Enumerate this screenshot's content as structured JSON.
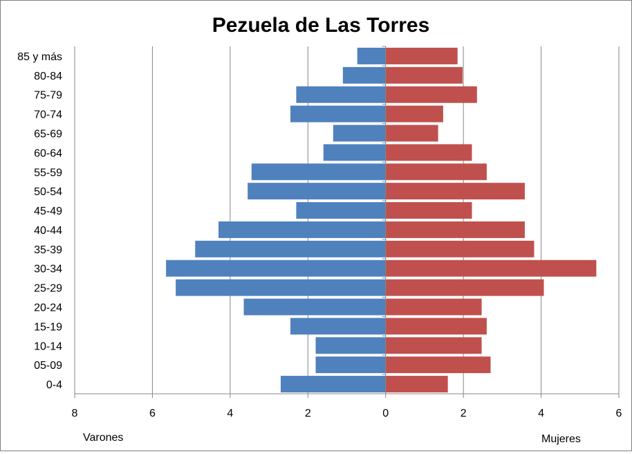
{
  "chart_data": {
    "type": "bar",
    "orientation": "horizontal",
    "title": "Pezuela de Las Torres",
    "categories": [
      "85 y más",
      "80-84",
      "75-79",
      "70-74",
      "65-69",
      "60-64",
      "55-59",
      "50-54",
      "45-49",
      "40-44",
      "35-39",
      "30-34",
      "25-29",
      "20-24",
      "15-19",
      "10-14",
      "05-09",
      "0-4"
    ],
    "series": [
      {
        "name": "Varones",
        "color": "#4f81bd",
        "values": [
          0.73,
          1.1,
          2.3,
          2.45,
          1.35,
          1.6,
          3.45,
          3.55,
          2.3,
          4.3,
          4.9,
          5.65,
          5.4,
          3.65,
          2.45,
          1.8,
          1.8,
          2.7
        ]
      },
      {
        "name": "Mujeres",
        "color": "#c0504d",
        "values": [
          1.85,
          1.98,
          2.35,
          1.48,
          1.35,
          2.22,
          2.6,
          3.58,
          2.22,
          3.58,
          3.82,
          5.42,
          4.07,
          2.47,
          2.6,
          2.47,
          2.7,
          1.6
        ]
      }
    ],
    "xlim": [
      -8,
      6
    ],
    "xticks": [
      -8,
      -6,
      -4,
      -2,
      0,
      2,
      4,
      6
    ],
    "xtick_labels": [
      "8",
      "6",
      "4",
      "2",
      "0",
      "2",
      "4",
      "6"
    ],
    "left_label": "Varones",
    "right_label": "Mujeres",
    "grid": "vertical"
  }
}
